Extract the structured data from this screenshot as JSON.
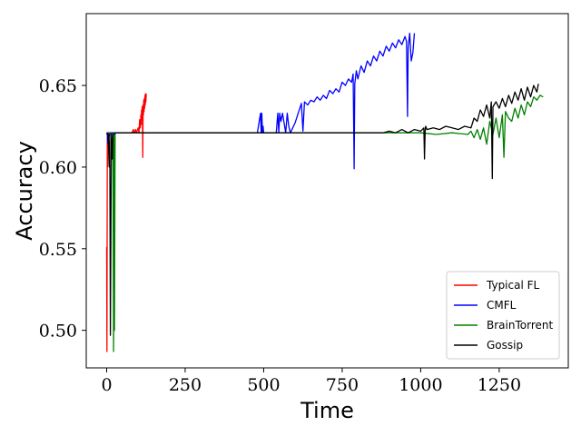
{
  "chart_data": {
    "type": "line",
    "title": "",
    "xlabel": "Time",
    "ylabel": "Accuracy",
    "xlim": [
      -65,
      1470
    ],
    "ylim": [
      0.477,
      0.694
    ],
    "xticks": [
      0,
      250,
      500,
      750,
      1000,
      1250
    ],
    "yticks": [
      0.5,
      0.55,
      0.6,
      0.65
    ],
    "xtick_labels": [
      "0",
      "250",
      "500",
      "750",
      "1000",
      "1250"
    ],
    "ytick_labels": [
      "0.50",
      "0.55",
      "0.60",
      "0.65"
    ],
    "grid": false,
    "legend_position": "lower-right",
    "series": [
      {
        "name": "Typical FL",
        "color": "#ff0000",
        "x": [
          0,
          1,
          2,
          3,
          4,
          5,
          6,
          10,
          20,
          40,
          60,
          80,
          85,
          88,
          92,
          95,
          100,
          103,
          105,
          107,
          109,
          110,
          111,
          112,
          113,
          114,
          115,
          116,
          117,
          118,
          119,
          120,
          121,
          122,
          123,
          124,
          125,
          126
        ],
        "y": [
          0.551,
          0.487,
          0.621,
          0.6,
          0.621,
          0.62,
          0.621,
          0.621,
          0.621,
          0.621,
          0.621,
          0.621,
          0.623,
          0.621,
          0.623,
          0.621,
          0.624,
          0.621,
          0.629,
          0.624,
          0.632,
          0.626,
          0.635,
          0.629,
          0.637,
          0.633,
          0.606,
          0.638,
          0.632,
          0.641,
          0.634,
          0.642,
          0.636,
          0.644,
          0.638,
          0.645,
          0.64,
          0.645
        ]
      },
      {
        "name": "CMFL",
        "color": "#0000ff",
        "x": [
          0,
          2,
          4,
          6,
          8,
          10,
          12,
          15,
          30,
          100,
          200,
          300,
          400,
          480,
          490,
          492,
          494,
          496,
          498,
          500,
          520,
          540,
          545,
          548,
          551,
          555,
          560,
          570,
          575,
          580,
          585,
          600,
          620,
          625,
          630,
          640,
          650,
          660,
          670,
          680,
          690,
          700,
          710,
          720,
          730,
          740,
          750,
          760,
          770,
          780,
          785,
          788,
          790,
          795,
          800,
          810,
          820,
          830,
          840,
          850,
          860,
          870,
          880,
          890,
          900,
          910,
          920,
          930,
          940,
          950,
          955,
          958,
          960,
          965,
          970,
          975,
          980
        ],
        "y": [
          0.62,
          0.621,
          0.614,
          0.621,
          0.619,
          0.621,
          0.62,
          0.621,
          0.621,
          0.621,
          0.621,
          0.621,
          0.621,
          0.621,
          0.633,
          0.621,
          0.633,
          0.621,
          0.625,
          0.621,
          0.621,
          0.621,
          0.633,
          0.621,
          0.633,
          0.628,
          0.633,
          0.621,
          0.633,
          0.625,
          0.621,
          0.627,
          0.639,
          0.622,
          0.64,
          0.638,
          0.641,
          0.64,
          0.643,
          0.641,
          0.644,
          0.642,
          0.647,
          0.645,
          0.648,
          0.646,
          0.652,
          0.65,
          0.654,
          0.652,
          0.657,
          0.599,
          0.651,
          0.659,
          0.654,
          0.662,
          0.658,
          0.665,
          0.662,
          0.668,
          0.665,
          0.671,
          0.668,
          0.674,
          0.671,
          0.676,
          0.673,
          0.678,
          0.675,
          0.68,
          0.677,
          0.631,
          0.673,
          0.682,
          0.665,
          0.67,
          0.682
        ]
      },
      {
        "name": "BrainTorrent",
        "color": "#008000",
        "x": [
          0,
          20,
          22,
          24,
          25,
          27,
          30,
          100,
          300,
          500,
          700,
          900,
          1000,
          1050,
          1100,
          1150,
          1160,
          1170,
          1180,
          1190,
          1200,
          1210,
          1220,
          1230,
          1240,
          1250,
          1260,
          1265,
          1270,
          1280,
          1290,
          1300,
          1310,
          1320,
          1330,
          1340,
          1350,
          1360,
          1370,
          1380,
          1390
        ],
        "y": [
          0.621,
          0.62,
          0.487,
          0.62,
          0.5,
          0.621,
          0.621,
          0.621,
          0.621,
          0.621,
          0.621,
          0.621,
          0.621,
          0.62,
          0.621,
          0.62,
          0.622,
          0.618,
          0.623,
          0.617,
          0.624,
          0.614,
          0.628,
          0.62,
          0.63,
          0.618,
          0.632,
          0.606,
          0.634,
          0.63,
          0.628,
          0.636,
          0.63,
          0.638,
          0.632,
          0.64,
          0.637,
          0.643,
          0.641,
          0.644,
          0.643
        ]
      },
      {
        "name": "Gossip",
        "color": "#000000",
        "x": [
          0,
          5,
          8,
          10,
          12,
          15,
          18,
          20,
          30,
          100,
          300,
          500,
          700,
          880,
          900,
          920,
          940,
          960,
          980,
          1000,
          1010,
          1012,
          1014,
          1016,
          1020,
          1040,
          1060,
          1080,
          1100,
          1120,
          1140,
          1160,
          1170,
          1180,
          1190,
          1200,
          1210,
          1220,
          1225,
          1228,
          1230,
          1240,
          1250,
          1260,
          1270,
          1280,
          1290,
          1300,
          1310,
          1320,
          1330,
          1340,
          1350,
          1360,
          1370,
          1375
        ],
        "y": [
          0.621,
          0.62,
          0.6,
          0.62,
          0.497,
          0.62,
          0.605,
          0.62,
          0.621,
          0.621,
          0.621,
          0.621,
          0.621,
          0.621,
          0.622,
          0.621,
          0.623,
          0.621,
          0.623,
          0.622,
          0.624,
          0.605,
          0.622,
          0.625,
          0.623,
          0.624,
          0.623,
          0.625,
          0.624,
          0.623,
          0.625,
          0.624,
          0.63,
          0.628,
          0.635,
          0.631,
          0.638,
          0.63,
          0.64,
          0.593,
          0.637,
          0.64,
          0.636,
          0.642,
          0.637,
          0.644,
          0.639,
          0.646,
          0.641,
          0.648,
          0.641,
          0.649,
          0.643,
          0.65,
          0.646,
          0.651
        ]
      }
    ]
  }
}
